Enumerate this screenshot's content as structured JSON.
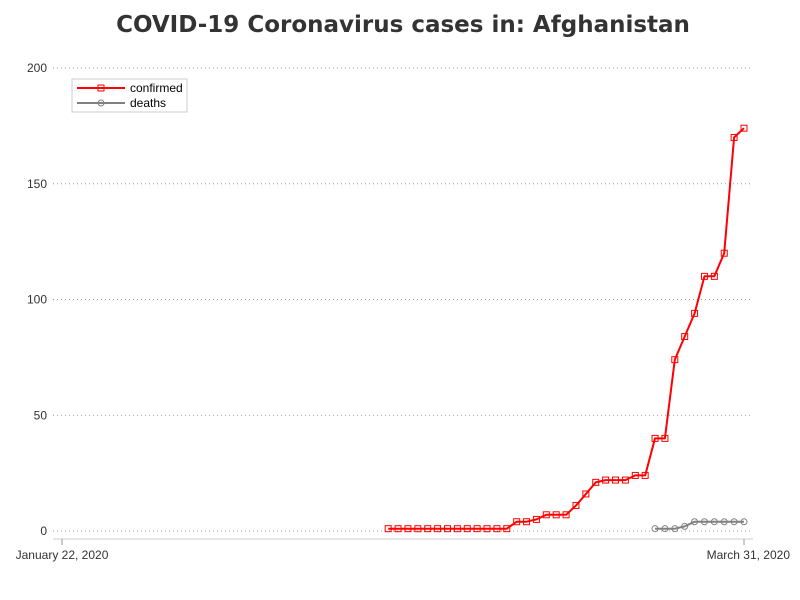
{
  "chart_data": {
    "type": "line",
    "title": "COVID-19 Coronavirus cases in: Afghanistan",
    "xlabel": "",
    "ylabel": "",
    "x_range": [
      "2020-01-22",
      "2020-03-31"
    ],
    "x_tick_labels": [
      {
        "date": "2020-01-22",
        "label": "January 22, 2020"
      },
      {
        "date": "2020-03-31",
        "label": "March 31, 2020"
      }
    ],
    "ylim": [
      0,
      200
    ],
    "y_ticks": [
      0,
      50,
      100,
      150,
      200
    ],
    "y_tick_labels": [
      "0",
      "50",
      "100",
      "150",
      "200"
    ],
    "grid": "horizontal dotted",
    "legend_position": "top-left",
    "series": [
      {
        "name": "confirmed",
        "color": "#ff0000",
        "marker": "square",
        "points": [
          {
            "x": "2020-02-24",
            "y": 1
          },
          {
            "x": "2020-02-25",
            "y": 1
          },
          {
            "x": "2020-02-26",
            "y": 1
          },
          {
            "x": "2020-02-27",
            "y": 1
          },
          {
            "x": "2020-02-28",
            "y": 1
          },
          {
            "x": "2020-02-29",
            "y": 1
          },
          {
            "x": "2020-03-01",
            "y": 1
          },
          {
            "x": "2020-03-02",
            "y": 1
          },
          {
            "x": "2020-03-03",
            "y": 1
          },
          {
            "x": "2020-03-04",
            "y": 1
          },
          {
            "x": "2020-03-05",
            "y": 1
          },
          {
            "x": "2020-03-06",
            "y": 1
          },
          {
            "x": "2020-03-07",
            "y": 1
          },
          {
            "x": "2020-03-08",
            "y": 4
          },
          {
            "x": "2020-03-09",
            "y": 4
          },
          {
            "x": "2020-03-10",
            "y": 5
          },
          {
            "x": "2020-03-11",
            "y": 7
          },
          {
            "x": "2020-03-12",
            "y": 7
          },
          {
            "x": "2020-03-13",
            "y": 7
          },
          {
            "x": "2020-03-14",
            "y": 11
          },
          {
            "x": "2020-03-15",
            "y": 16
          },
          {
            "x": "2020-03-16",
            "y": 21
          },
          {
            "x": "2020-03-17",
            "y": 22
          },
          {
            "x": "2020-03-18",
            "y": 22
          },
          {
            "x": "2020-03-19",
            "y": 22
          },
          {
            "x": "2020-03-20",
            "y": 24
          },
          {
            "x": "2020-03-21",
            "y": 24
          },
          {
            "x": "2020-03-22",
            "y": 40
          },
          {
            "x": "2020-03-23",
            "y": 40
          },
          {
            "x": "2020-03-24",
            "y": 74
          },
          {
            "x": "2020-03-25",
            "y": 84
          },
          {
            "x": "2020-03-26",
            "y": 94
          },
          {
            "x": "2020-03-27",
            "y": 110
          },
          {
            "x": "2020-03-28",
            "y": 110
          },
          {
            "x": "2020-03-29",
            "y": 120
          },
          {
            "x": "2020-03-30",
            "y": 170
          },
          {
            "x": "2020-03-31",
            "y": 174
          }
        ]
      },
      {
        "name": "deaths",
        "color": "#808080",
        "marker": "circle",
        "points": [
          {
            "x": "2020-03-22",
            "y": 1
          },
          {
            "x": "2020-03-23",
            "y": 1
          },
          {
            "x": "2020-03-24",
            "y": 1
          },
          {
            "x": "2020-03-25",
            "y": 2
          },
          {
            "x": "2020-03-26",
            "y": 4
          },
          {
            "x": "2020-03-27",
            "y": 4
          },
          {
            "x": "2020-03-28",
            "y": 4
          },
          {
            "x": "2020-03-29",
            "y": 4
          },
          {
            "x": "2020-03-30",
            "y": 4
          },
          {
            "x": "2020-03-31",
            "y": 4
          }
        ]
      }
    ]
  }
}
